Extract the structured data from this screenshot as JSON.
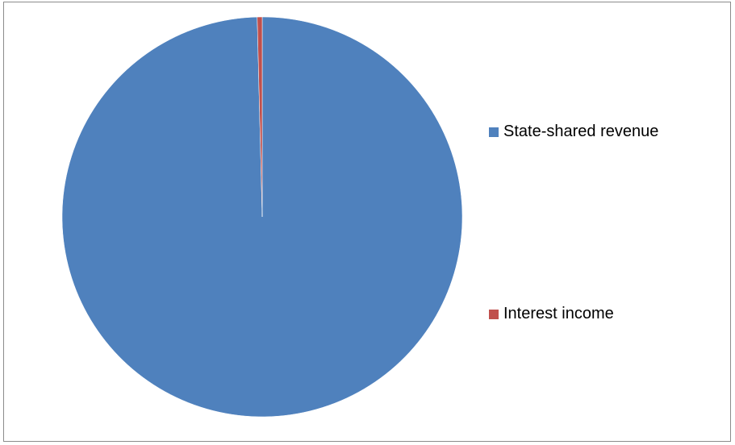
{
  "chart_data": {
    "type": "pie",
    "title": "",
    "categories": [
      "State-shared revenue",
      "Interest income"
    ],
    "values": [
      99.6,
      0.4
    ],
    "colors": [
      "#4f81bd",
      "#c0504d"
    ],
    "legend_position": "right"
  }
}
